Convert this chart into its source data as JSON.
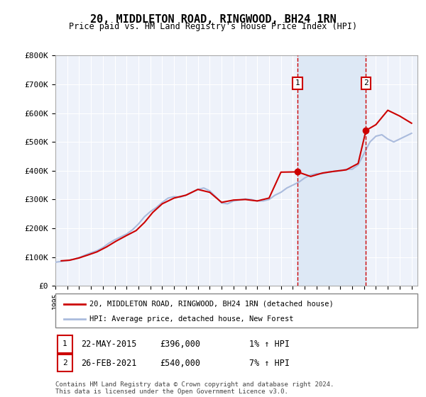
{
  "title": "20, MIDDLETON ROAD, RINGWOOD, BH24 1RN",
  "subtitle": "Price paid vs. HM Land Registry's House Price Index (HPI)",
  "ylabel_ticks": [
    "£0",
    "£100K",
    "£200K",
    "£300K",
    "£400K",
    "£500K",
    "£600K",
    "£700K",
    "£800K"
  ],
  "ytick_values": [
    0,
    100000,
    200000,
    300000,
    400000,
    500000,
    600000,
    700000,
    800000
  ],
  "ylim": [
    0,
    800000
  ],
  "xlim_start": 1995.0,
  "xlim_end": 2025.5,
  "background_color": "#ffffff",
  "plot_bg_color": "#eef2fa",
  "grid_color": "#ffffff",
  "hpi_color": "#aabbdd",
  "price_color": "#cc0000",
  "shade_color": "#dde8f5",
  "transaction1_x": 2015.39,
  "transaction1_y": 396000,
  "transaction2_x": 2021.16,
  "transaction2_y": 540000,
  "legend_line1": "20, MIDDLETON ROAD, RINGWOOD, BH24 1RN (detached house)",
  "legend_line2": "HPI: Average price, detached house, New Forest",
  "annot1_label": "1",
  "annot1_date": "22-MAY-2015",
  "annot1_price": "£396,000",
  "annot1_hpi": "1% ↑ HPI",
  "annot2_label": "2",
  "annot2_date": "26-FEB-2021",
  "annot2_price": "£540,000",
  "annot2_hpi": "7% ↑ HPI",
  "footnote": "Contains HM Land Registry data © Crown copyright and database right 2024.\nThis data is licensed under the Open Government Licence v3.0.",
  "hpi_data_x": [
    1995.0,
    1995.5,
    1996.0,
    1996.5,
    1997.0,
    1997.5,
    1998.0,
    1998.5,
    1999.0,
    1999.5,
    2000.0,
    2000.5,
    2001.0,
    2001.5,
    2002.0,
    2002.5,
    2003.0,
    2003.5,
    2004.0,
    2004.5,
    2005.0,
    2005.5,
    2006.0,
    2006.5,
    2007.0,
    2007.5,
    2008.0,
    2008.5,
    2009.0,
    2009.5,
    2010.0,
    2010.5,
    2011.0,
    2011.5,
    2012.0,
    2012.5,
    2013.0,
    2013.5,
    2014.0,
    2014.5,
    2015.0,
    2015.5,
    2016.0,
    2016.5,
    2017.0,
    2017.5,
    2018.0,
    2018.5,
    2019.0,
    2019.5,
    2020.0,
    2020.5,
    2021.0,
    2021.5,
    2022.0,
    2022.5,
    2023.0,
    2023.5,
    2024.0,
    2024.5,
    2025.0
  ],
  "hpi_data_y": [
    82000,
    85000,
    88000,
    92000,
    98000,
    107000,
    115000,
    122000,
    133000,
    148000,
    160000,
    170000,
    180000,
    195000,
    215000,
    240000,
    258000,
    272000,
    290000,
    305000,
    310000,
    308000,
    315000,
    325000,
    335000,
    340000,
    330000,
    310000,
    288000,
    285000,
    295000,
    298000,
    302000,
    300000,
    295000,
    295000,
    300000,
    315000,
    325000,
    340000,
    350000,
    360000,
    375000,
    385000,
    390000,
    390000,
    395000,
    398000,
    400000,
    405000,
    405000,
    420000,
    460000,
    500000,
    520000,
    525000,
    510000,
    500000,
    510000,
    520000,
    530000
  ],
  "price_data_x": [
    1995.5,
    1996.2,
    1997.0,
    1997.8,
    1998.5,
    1999.3,
    2000.1,
    2001.0,
    2001.8,
    2002.5,
    2003.2,
    2004.0,
    2005.0,
    2006.0,
    2007.0,
    2008.0,
    2009.0,
    2010.0,
    2011.0,
    2012.0,
    2013.0,
    2014.0,
    2015.39,
    2016.5,
    2017.5,
    2018.5,
    2019.5,
    2020.5,
    2021.16,
    2022.0,
    2023.0,
    2024.0,
    2025.0
  ],
  "price_data_y": [
    87000,
    89000,
    97000,
    108000,
    118000,
    135000,
    155000,
    175000,
    192000,
    220000,
    255000,
    285000,
    305000,
    315000,
    335000,
    325000,
    290000,
    298000,
    300000,
    295000,
    305000,
    395000,
    396000,
    380000,
    392000,
    398000,
    403000,
    425000,
    540000,
    560000,
    610000,
    590000,
    565000
  ]
}
